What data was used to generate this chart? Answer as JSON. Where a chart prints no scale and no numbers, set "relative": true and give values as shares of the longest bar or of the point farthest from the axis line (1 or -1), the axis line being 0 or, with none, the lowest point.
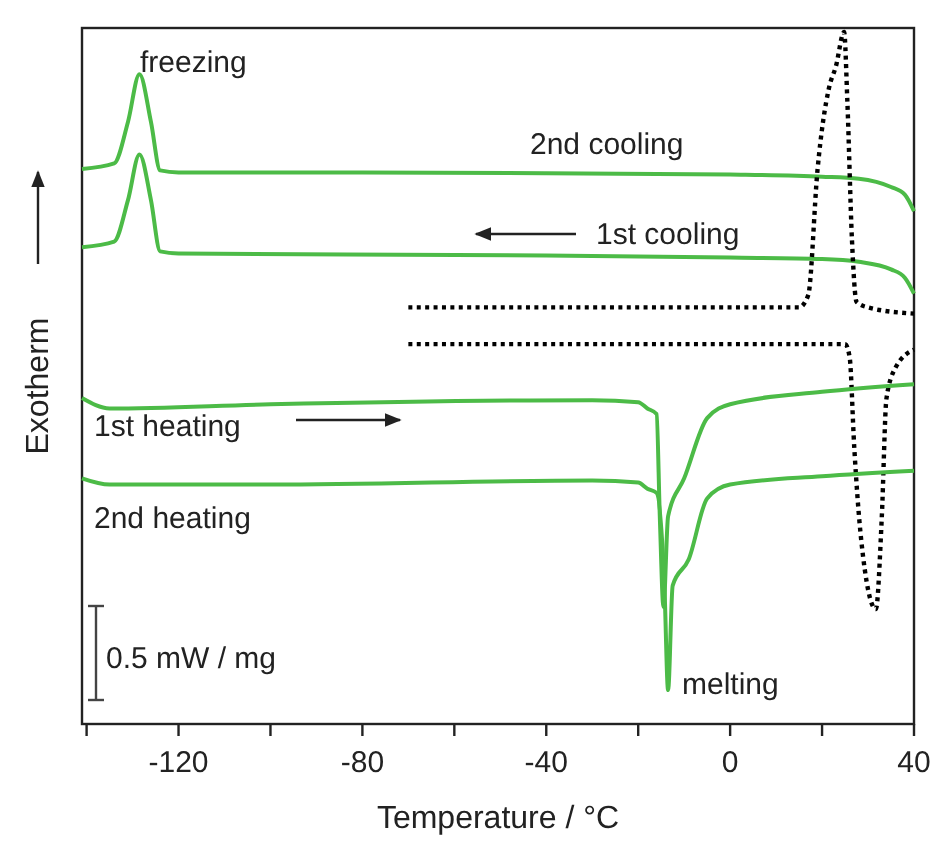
{
  "chart_data": {
    "type": "line",
    "relative": true,
    "xlabel": "Temperature / °C",
    "ylabel": "Exotherm",
    "tick_labels": "x",
    "xlim": [
      -141,
      40
    ],
    "xticks": [
      {
        "value": -140,
        "label": null
      },
      -120,
      {
        "value": -100,
        "label": null
      },
      -80,
      {
        "value": -60,
        "label": null
      },
      -40,
      {
        "value": -20,
        "label": null
      },
      0,
      {
        "value": 20,
        "label": null
      },
      40
    ],
    "annotations": [
      "freezing",
      "melting",
      "0.5 mW / mg"
    ],
    "series": [
      {
        "name": "2nd cooling",
        "color": "#4cbb47",
        "line_style": "solid",
        "x": [
          -141,
          -134,
          -131,
          -128.5,
          -126,
          -124,
          -120,
          -80,
          -40,
          0,
          20,
          28,
          35,
          38,
          40
        ],
        "values": [
          0.802,
          0.81,
          0.87,
          0.939,
          0.87,
          0.8,
          0.797,
          0.797,
          0.796,
          0.794,
          0.791,
          0.788,
          0.776,
          0.765,
          0.741
        ]
      },
      {
        "name": "1st cooling",
        "color": "#4cbb47",
        "line_style": "solid",
        "x": [
          -141,
          -134,
          -131,
          -128.5,
          -126,
          -124,
          -120,
          -40,
          0,
          20,
          28,
          35,
          38,
          40
        ],
        "values": [
          0.689,
          0.697,
          0.757,
          0.823,
          0.757,
          0.683,
          0.68,
          0.677,
          0.674,
          0.672,
          0.668,
          0.657,
          0.645,
          0.622
        ]
      },
      {
        "color": "#000000",
        "line_style": "dotted",
        "x": [
          -70,
          15,
          17,
          19,
          21.5,
          23,
          24.8,
          25.5,
          26.5,
          27.5,
          30,
          40
        ],
        "values": [
          0.602,
          0.602,
          0.62,
          0.8,
          0.919,
          0.95,
          1.0,
          0.9,
          0.7,
          0.61,
          0.602,
          0.593
        ]
      },
      {
        "color": "#000000",
        "line_style": "dotted",
        "x": [
          -70,
          25,
          26,
          27,
          28.5,
          31.7,
          33,
          34,
          36,
          40
        ],
        "values": [
          0.549,
          0.549,
          0.53,
          0.4,
          0.267,
          0.166,
          0.3,
          0.47,
          0.515,
          0.541
        ]
      },
      {
        "name": "1st heating",
        "color": "#4cbb47",
        "line_style": "solid",
        "x": [
          -141,
          -135,
          -100,
          -30,
          -20,
          -18,
          -16,
          -15.3,
          -14.5,
          -13.5,
          -10,
          -5,
          0,
          20,
          40
        ],
        "values": [
          0.471,
          0.456,
          0.462,
          0.468,
          0.465,
          0.456,
          0.448,
          0.3,
          0.169,
          0.3,
          0.355,
          0.442,
          0.462,
          0.48,
          0.491
        ]
      },
      {
        "name": "2nd heating",
        "color": "#4cbb47",
        "line_style": "solid",
        "x": [
          -141,
          -135,
          -100,
          -30,
          -20,
          -18,
          -16,
          -14.3,
          -13.5,
          -12.5,
          -9,
          -5,
          0,
          20,
          40
        ],
        "values": [
          0.355,
          0.346,
          0.346,
          0.352,
          0.349,
          0.34,
          0.334,
          0.2,
          0.049,
          0.2,
          0.238,
          0.326,
          0.346,
          0.358,
          0.366
        ]
      }
    ]
  }
}
